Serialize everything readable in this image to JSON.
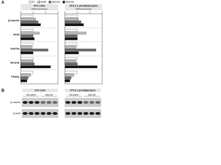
{
  "chart_data": {
    "type": "bar",
    "orientation": "horizontal",
    "panel_label": "A",
    "categories": [
      "β-catenin",
      "Wnt5",
      "Wnt10a",
      "Wnt10b",
      "PPARγ"
    ],
    "series": [
      {
        "name": "EV",
        "color": "#ffffff"
      },
      {
        "name": "Wnt5",
        "color": "#bdbdbd"
      },
      {
        "name": "Wnt10a",
        "color": "#6b6b6b"
      },
      {
        "name": "Wnt10b",
        "color": "#111111"
      }
    ],
    "xlim": [
      0,
      3
    ],
    "xticks": [
      0,
      1,
      2,
      3
    ],
    "panels": [
      {
        "title": "3T3 cells",
        "xlabel": "mRNA expression",
        "values": [
          [
            1,
            1,
            1,
            1,
            1
          ],
          [
            1.2,
            1.5,
            0.9,
            1.0,
            0.8
          ],
          [
            1.4,
            1.0,
            2.2,
            1.1,
            0.6
          ],
          [
            1.6,
            1.1,
            1.0,
            2.4,
            0.5
          ]
        ]
      },
      {
        "title": "3T3-L1 preadipocytes",
        "xlabel": "mRNA expression",
        "values": [
          [
            1,
            1,
            1,
            1,
            1
          ],
          [
            1.1,
            1.7,
            0.9,
            0.9,
            0.7
          ],
          [
            1.3,
            1.0,
            2.5,
            1.0,
            0.5
          ],
          [
            1.5,
            1.0,
            1.1,
            2.6,
            0.4
          ]
        ]
      }
    ]
  },
  "panel_b": {
    "label": "B",
    "groups": [
      {
        "title": "3T3 cells",
        "conditions": [
          "shControl",
          "shβ-cat"
        ]
      },
      {
        "title": "3T3-L1 preadipocytes",
        "conditions": [
          "shControl",
          "shβ-cat"
        ]
      }
    ],
    "rows": [
      "β-catenin",
      "β-actin"
    ]
  }
}
